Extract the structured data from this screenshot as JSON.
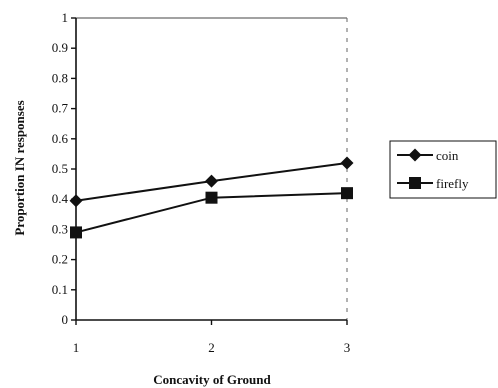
{
  "chart_data": {
    "type": "line",
    "x": [
      1,
      2,
      3
    ],
    "xticks": [
      "1",
      "2",
      "3"
    ],
    "xlabel": "Concavity of Ground",
    "ylabel": "Proportion IN responses",
    "ylim": [
      0,
      1
    ],
    "yticks": [
      "0",
      "0.1",
      "0.2",
      "0.3",
      "0.4",
      "0.5",
      "0.6",
      "0.7",
      "0.8",
      "0.9",
      "1"
    ],
    "grid": false,
    "legend_position": "right",
    "series": [
      {
        "name": "coin",
        "marker": "diamond",
        "color": "#111111",
        "values": [
          0.395,
          0.46,
          0.52
        ]
      },
      {
        "name": "firefly",
        "marker": "square",
        "color": "#111111",
        "values": [
          0.29,
          0.405,
          0.42
        ]
      }
    ]
  }
}
